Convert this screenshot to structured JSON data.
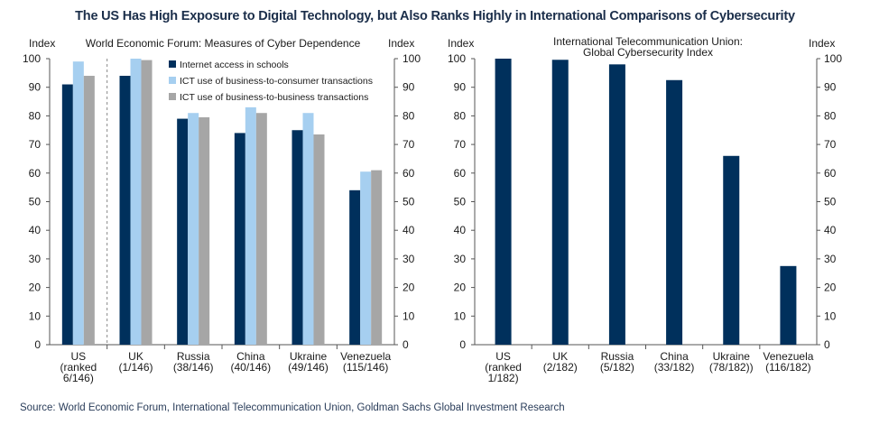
{
  "title": "The US Has High Exposure to Digital Technology, but Also Ranks Highly in International Comparisons of Cybersecurity",
  "source": "Source: World Economic Forum, International Telecommunication Union, Goldman Sachs Global Investment Research",
  "colors": {
    "navy": "#00305c",
    "lightblue": "#a6cff0",
    "gray": "#a6a6a6"
  },
  "chart_data": [
    {
      "type": "bar",
      "title": "World Economic Forum: Measures of Cyber Dependence",
      "ylabel_left": "Index",
      "ylabel_right": "Index",
      "ylim": [
        0,
        100
      ],
      "yticks": [
        0,
        10,
        20,
        30,
        40,
        50,
        60,
        70,
        80,
        90,
        100
      ],
      "categories": [
        [
          "US",
          "(ranked",
          "6/146)"
        ],
        [
          "UK",
          "(1/146)"
        ],
        [
          "Russia",
          "(38/146)"
        ],
        [
          "China",
          "(40/146)"
        ],
        [
          "Ukraine",
          "(49/146)"
        ],
        [
          "Venezuela",
          "(115/146)"
        ]
      ],
      "series": [
        {
          "name": "Internet access in schools",
          "color": "#00305c",
          "values": [
            91,
            94,
            79,
            74,
            75,
            54
          ]
        },
        {
          "name": "ICT use of business-to-consumer transactions",
          "color": "#a6cff0",
          "values": [
            99,
            100,
            81,
            83,
            81,
            60.5
          ]
        },
        {
          "name": "ICT use of business-to-business transactions",
          "color": "#a6a6a6",
          "values": [
            94,
            99.5,
            79.5,
            81,
            73.5,
            61
          ]
        }
      ],
      "legend": "top-right",
      "grid": false,
      "separator_after": 0
    },
    {
      "type": "bar",
      "title": [
        "International Telecommunication Union:",
        "Global Cybersecurity Index"
      ],
      "ylabel_left": "Index",
      "ylabel_right": "Index",
      "ylim": [
        0,
        100
      ],
      "yticks": [
        0,
        10,
        20,
        30,
        40,
        50,
        60,
        70,
        80,
        90,
        100
      ],
      "categories": [
        [
          "US",
          "(ranked",
          "1/182)"
        ],
        [
          "UK",
          "(2/182)"
        ],
        [
          "Russia",
          "(5/182)"
        ],
        [
          "China",
          "(33/182)"
        ],
        [
          "Ukraine",
          "(78/182))"
        ],
        [
          "Venezuela",
          "(116/182)"
        ]
      ],
      "series": [
        {
          "color": "#00305c",
          "values": [
            100,
            99.6,
            98,
            92.5,
            66,
            27.5
          ]
        }
      ],
      "grid": false
    }
  ]
}
